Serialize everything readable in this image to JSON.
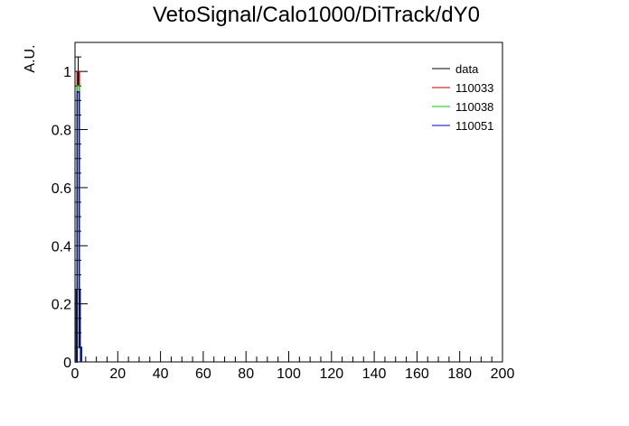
{
  "chart_data": {
    "type": "line",
    "title": "VetoSignal/Calo1000/DiTrack/dY0",
    "xlabel": "",
    "ylabel": "A.U.",
    "xlim": [
      0,
      200
    ],
    "ylim": [
      0,
      1.1
    ],
    "xticks": [
      0,
      20,
      40,
      60,
      80,
      100,
      120,
      140,
      160,
      180,
      200
    ],
    "yticks": [
      0,
      0.2,
      0.4,
      0.6,
      0.8,
      1
    ],
    "x_minor_step": 5,
    "y_minor_step": 0.05,
    "grid": false,
    "legend_position": "top-right",
    "series": [
      {
        "name": "data",
        "color": "#000000",
        "kind": "points",
        "x": [
          0.5,
          1.5,
          2.5
        ],
        "values": [
          0.05,
          1.0,
          0.05
        ],
        "errors": [
          0.2,
          0.05,
          0.2
        ]
      },
      {
        "name": "110033",
        "color": "#bb0000",
        "kind": "hist",
        "x": [
          0.5,
          1.5,
          2.5
        ],
        "values": [
          0.0,
          1.0,
          0.05
        ]
      },
      {
        "name": "110038",
        "color": "#00cc00",
        "kind": "hist",
        "x": [
          0.5,
          1.5,
          2.5
        ],
        "values": [
          0.0,
          0.95,
          0.05
        ]
      },
      {
        "name": "110051",
        "color": "#0000cc",
        "kind": "hist",
        "x": [
          0.5,
          1.5,
          2.5
        ],
        "values": [
          0.0,
          0.93,
          0.05
        ]
      }
    ]
  }
}
